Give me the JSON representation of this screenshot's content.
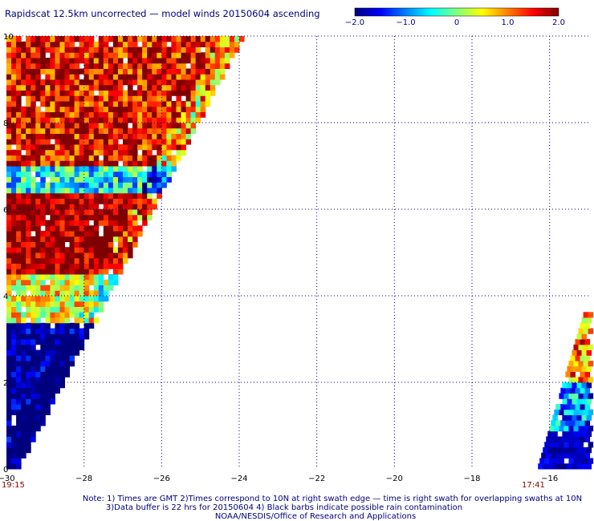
{
  "title": "Rapidscat 12.5km uncorrected — model winds 20150604 ascending",
  "colorbar": {
    "ticks": [
      "−2.0",
      "−1.0",
      "0",
      "1.0",
      "2.0"
    ],
    "colors": [
      "#00007f",
      "#0000ff",
      "#007fff",
      "#00ffff",
      "#7fff7f",
      "#ffff00",
      "#ff7f00",
      "#ff0000",
      "#7f0000"
    ]
  },
  "chart_data": {
    "type": "heatmap",
    "xlim": [
      -30,
      -15
    ],
    "ylim": [
      0,
      10
    ],
    "x_ticks": [
      -30,
      -28,
      -26,
      -24,
      -22,
      -20,
      -18,
      -16
    ],
    "y_ticks": [
      0,
      2,
      4,
      6,
      8,
      10
    ],
    "grid": true,
    "value_range": [
      -2.0,
      2.0
    ],
    "regions": [
      {
        "name": "left swath upper band",
        "lat": [
          7,
          10
        ],
        "lon_west": -30,
        "approx_value": 1.5
      },
      {
        "name": "left swath mid transition",
        "lat": [
          6.3,
          7
        ],
        "lon_west": -30,
        "approx_value": -0.5
      },
      {
        "name": "left swath core",
        "lat": [
          4.5,
          6.3
        ],
        "lon_west": -30,
        "approx_value": 2.0
      },
      {
        "name": "left swath lower band",
        "lat": [
          3.3,
          4.5
        ],
        "lon_west": -30,
        "approx_value": 0.5
      },
      {
        "name": "left swath bottom",
        "lat": [
          0,
          3.3
        ],
        "lon_west": -30,
        "approx_value": -2.0
      },
      {
        "name": "right swath upper",
        "lat": [
          2.0,
          3.6
        ],
        "lon_east": -15,
        "approx_value": 1.0
      },
      {
        "name": "right swath lower",
        "lat": [
          0,
          2.0
        ],
        "lon_east": -15,
        "approx_value": -1.0
      }
    ]
  },
  "times": {
    "left": "19:15",
    "right": "17:41"
  },
  "notes": {
    "line1": "Note: 1) Times are GMT 2)Times correspond to 10N at right swath edge — time is right swath for overlapping swaths at 10N",
    "line2": "3)Data buffer is 22 hrs for 20150604 4) Black barbs indicate possible rain contamination",
    "line3": "NOAA/NESDIS/Office of Research and Applications"
  }
}
